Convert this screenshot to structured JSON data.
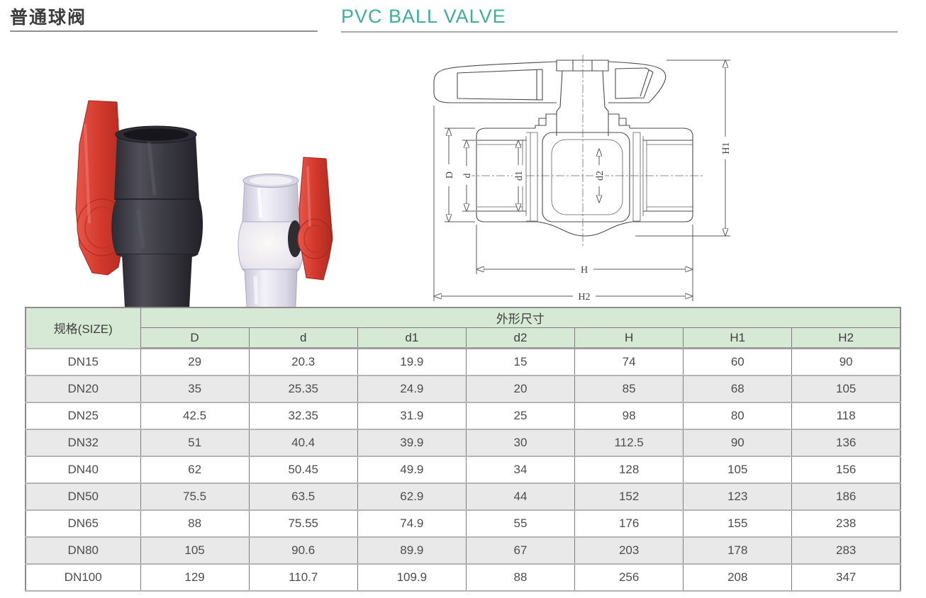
{
  "header": {
    "title_cn": "普通球阀",
    "title_en": "PVC BALL VALVE"
  },
  "colors": {
    "accent_green": "#3fae97",
    "table_header_bg": "#d6e9d4",
    "row_alt_bg": "#e9e9e9",
    "handle_red": "#d63a2e",
    "valve_body_dark": "#37363e",
    "valve_body_clear": "#e2dfee"
  },
  "drawing": {
    "labels": {
      "D": "D",
      "d": "d",
      "d1": "d1",
      "d2": "d2",
      "H": "H",
      "H1": "H1",
      "H2": "H2"
    }
  },
  "table": {
    "size_header": "规格(SIZE)",
    "group_header": "外形尺寸",
    "columns": [
      "D",
      "d",
      "d1",
      "d2",
      "H",
      "H1",
      "H2"
    ],
    "rows": [
      {
        "size": "DN15",
        "values": [
          "29",
          "20.3",
          "19.9",
          "15",
          "74",
          "60",
          "90"
        ]
      },
      {
        "size": "DN20",
        "values": [
          "35",
          "25.35",
          "24.9",
          "20",
          "85",
          "68",
          "105"
        ]
      },
      {
        "size": "DN25",
        "values": [
          "42.5",
          "32.35",
          "31.9",
          "25",
          "98",
          "80",
          "118"
        ]
      },
      {
        "size": "DN32",
        "values": [
          "51",
          "40.4",
          "39.9",
          "30",
          "112.5",
          "90",
          "136"
        ]
      },
      {
        "size": "DN40",
        "values": [
          "62",
          "50.45",
          "49.9",
          "34",
          "128",
          "105",
          "156"
        ]
      },
      {
        "size": "DN50",
        "values": [
          "75.5",
          "63.5",
          "62.9",
          "44",
          "152",
          "123",
          "186"
        ]
      },
      {
        "size": "DN65",
        "values": [
          "88",
          "75.55",
          "74.9",
          "55",
          "176",
          "155",
          "238"
        ]
      },
      {
        "size": "DN80",
        "values": [
          "105",
          "90.6",
          "89.9",
          "67",
          "203",
          "178",
          "283"
        ]
      },
      {
        "size": "DN100",
        "values": [
          "129",
          "110.7",
          "109.9",
          "88",
          "256",
          "208",
          "347"
        ]
      }
    ]
  }
}
